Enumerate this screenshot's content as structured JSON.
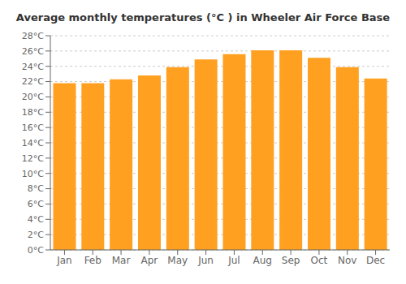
{
  "chart_data": {
    "type": "bar",
    "title": "Average monthly temperatures (°C ) in Wheeler Air Force Base",
    "categories": [
      "Jan",
      "Feb",
      "Mar",
      "Apr",
      "May",
      "Jun",
      "Jul",
      "Aug",
      "Sep",
      "Oct",
      "Nov",
      "Dec"
    ],
    "values": [
      21.8,
      21.8,
      22.3,
      22.8,
      23.9,
      24.9,
      25.6,
      26.1,
      26.1,
      25.1,
      23.9,
      22.4
    ],
    "color": "#FFA020",
    "ylim": [
      0,
      28
    ],
    "yticks": [
      {
        "value": 0,
        "label": "0°C"
      },
      {
        "value": 2,
        "label": "2°C"
      },
      {
        "value": 4,
        "label": "4°C"
      },
      {
        "value": 6,
        "label": "6°C"
      },
      {
        "value": 8,
        "label": "8°C"
      },
      {
        "value": 10,
        "label": "10°C"
      },
      {
        "value": 12,
        "label": "12°C"
      },
      {
        "value": 14,
        "label": "14°C"
      },
      {
        "value": 16,
        "label": "16°C"
      },
      {
        "value": 18,
        "label": "18°C"
      },
      {
        "value": 20,
        "label": "20°C"
      },
      {
        "value": 22,
        "label": "22°C"
      },
      {
        "value": 24,
        "label": "24°C"
      },
      {
        "value": 26,
        "label": "26°C"
      },
      {
        "value": 28,
        "label": "28°C"
      }
    ],
    "grid": true
  }
}
